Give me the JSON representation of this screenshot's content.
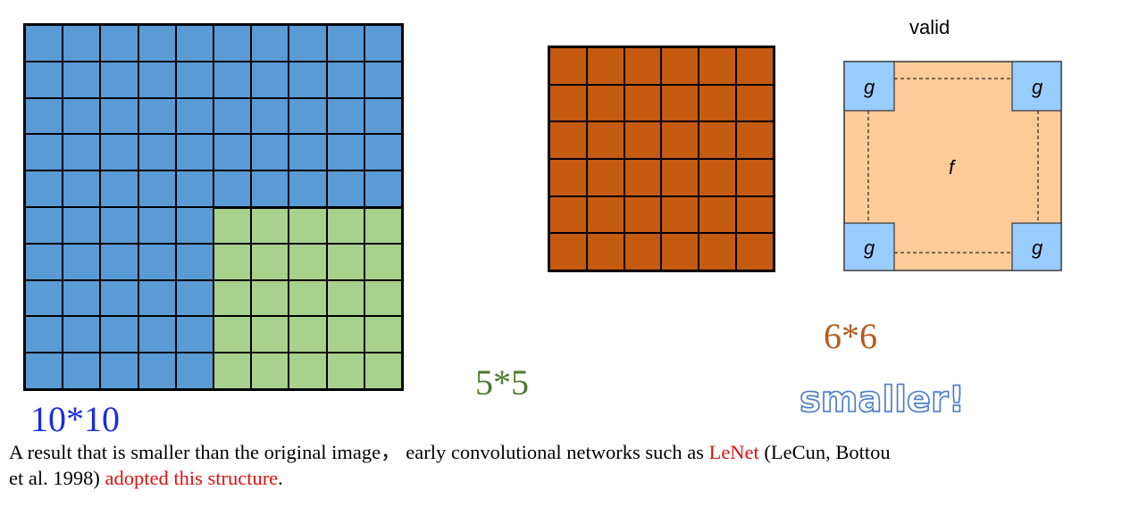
{
  "input_grid": {
    "size_label": "10*10",
    "rows": 10,
    "cols": 10,
    "color": "#5b9bd5"
  },
  "kernel_overlay": {
    "rows": 5,
    "cols": 5,
    "color": "#a9d18e",
    "size_label": "5*5"
  },
  "output_grid": {
    "size_label": "6*6",
    "rows": 6,
    "cols": 6,
    "color": "#c55a11"
  },
  "valid_diagram": {
    "title": "valid",
    "f_label": "f",
    "g_label": "g",
    "f_color": "#ffcc99",
    "g_color": "#99ccff"
  },
  "callout": "smaller!",
  "caption": {
    "part1": "A result that is smaller than the original image， early convolutional networks such as ",
    "lenet": "LeNet",
    "part2": " (LeCun, Bottou",
    "part3": "et al. 1998) ",
    "adopted": "adopted this structure",
    "end": "."
  }
}
